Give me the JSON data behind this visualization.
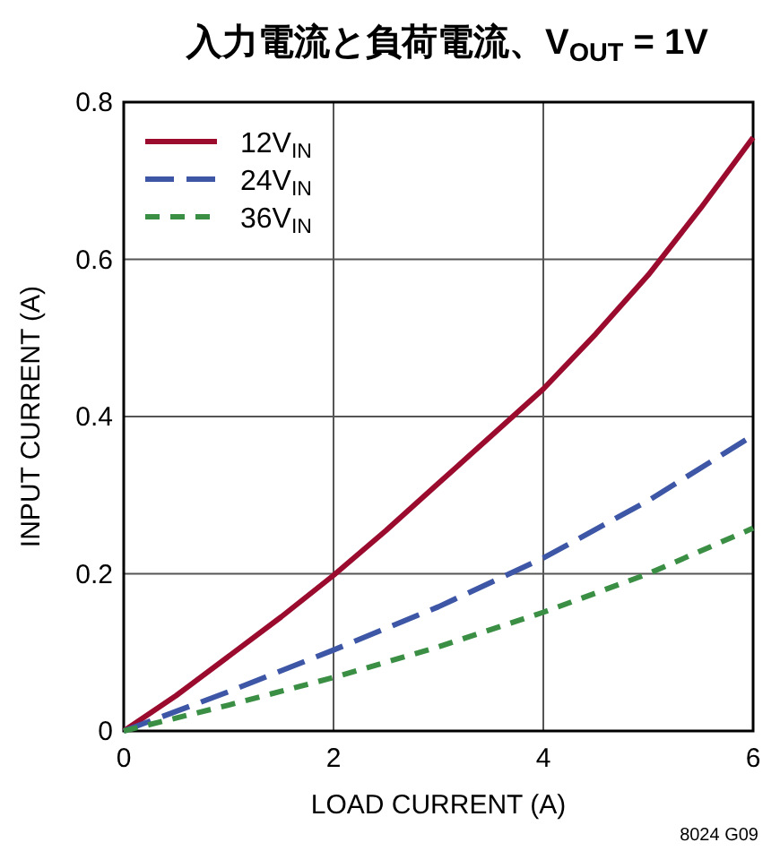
{
  "chart_data": {
    "type": "line",
    "title": "入力電流と負荷電流、V$_{OUT}$ = 1V",
    "xlabel": "LOAD CURRENT (A)",
    "ylabel": "INPUT CURRENT (A)",
    "annotations": [
      "8024 G09"
    ],
    "xlim": [
      0,
      6
    ],
    "ylim": [
      0,
      0.8
    ],
    "xticks": [
      0,
      2,
      4,
      6
    ],
    "yticks": [
      0,
      0.2,
      0.4,
      0.6,
      0.8
    ],
    "grid": true,
    "legend": "top left",
    "series": [
      {
        "name": "12V$_{IN}$",
        "color": "#9b0b2e",
        "line_style": "solid",
        "x": [
          0,
          0.5,
          1,
          1.5,
          2,
          2.5,
          3,
          3.5,
          4,
          4.5,
          5,
          5.5,
          6
        ],
        "values": [
          0,
          0.045,
          0.095,
          0.145,
          0.198,
          0.255,
          0.315,
          0.375,
          0.435,
          0.505,
          0.58,
          0.665,
          0.755
        ]
      },
      {
        "name": "24V$_{IN}$",
        "color": "#3d56a6",
        "line_style": "dashed",
        "x": [
          0,
          1,
          2,
          3,
          4,
          5,
          6
        ],
        "values": [
          0,
          0.05,
          0.103,
          0.158,
          0.22,
          0.293,
          0.376
        ]
      },
      {
        "name": "36V$_{IN}$",
        "color": "#3b8f45",
        "line_style": "dotted",
        "x": [
          0,
          1,
          2,
          3,
          4,
          5,
          6
        ],
        "values": [
          0,
          0.033,
          0.068,
          0.107,
          0.151,
          0.2,
          0.258
        ]
      }
    ]
  }
}
